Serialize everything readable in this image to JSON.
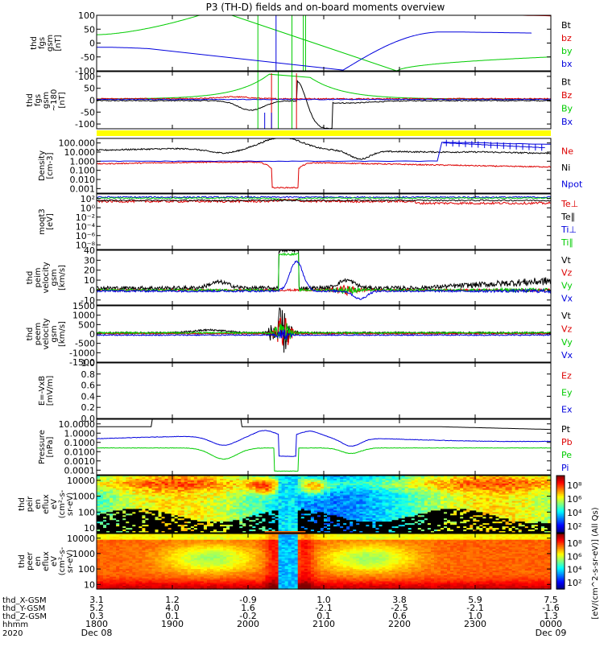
{
  "chart_data": {
    "type": "line",
    "title": "P3 (TH-D) fields and on-board moments overview",
    "time_axis": {
      "tick_labels": [
        "1800",
        "1900",
        "2000",
        "2100",
        "2200",
        "2300",
        "0000"
      ],
      "start_date": "Dec 08",
      "end_date": "Dec 09",
      "year": "2020",
      "row_labels": [
        "thd_X-GSM",
        "thd_Y-GSM",
        "thd_Z-GSM",
        "hhmm"
      ],
      "x_gsm": [
        "3.1",
        "1.2",
        "-0.9",
        "1.0",
        "3.8",
        "5.9",
        "7.5"
      ],
      "y_gsm": [
        "5.2",
        "4.0",
        "1.6",
        "-2.1",
        "-2.5",
        "-2.1",
        "-1.6"
      ],
      "z_gsm": [
        "0.3",
        "0.1",
        "-0.2",
        "0.1",
        "0.6",
        "1.0",
        "1.3"
      ]
    },
    "panels": [
      {
        "ylabel": [
          "thd",
          "fgs",
          "gsm",
          "[nT]"
        ],
        "ticks": [
          "100",
          "50",
          "0",
          "-50",
          "-100"
        ],
        "tick_values": [
          100,
          50,
          0,
          -50,
          -100
        ],
        "ylim": [
          -100,
          100
        ],
        "legend": [
          {
            "label": "Bt",
            "color": "#000000"
          },
          {
            "label": "bz",
            "color": "#dd0000"
          },
          {
            "label": "by",
            "color": "#00cc00"
          },
          {
            "label": "bx",
            "color": "#0000dd"
          }
        ]
      },
      {
        "ylabel": [
          "thd",
          "fgs",
          "gsm",
          "~180",
          "[nT]"
        ],
        "ticks": [
          "100",
          "50",
          "0",
          "-50",
          "-100"
        ],
        "tick_values": [
          100,
          50,
          0,
          -50,
          -100
        ],
        "ylim": [
          -120,
          120
        ],
        "legend": [
          {
            "label": "Bt",
            "color": "#000000"
          },
          {
            "label": "Bz",
            "color": "#dd0000"
          },
          {
            "label": "By",
            "color": "#00cc00"
          },
          {
            "label": "Bx",
            "color": "#0000dd"
          }
        ]
      },
      {
        "ylabel": [
          "Density",
          "[cm-3]"
        ],
        "ticks": [
          "100.000",
          "10.000",
          "1.000",
          "0.100",
          "0.010",
          "0.001"
        ],
        "tick_values": [
          2,
          1,
          0,
          -1,
          -2,
          -3
        ],
        "ylim": [
          -3.5,
          2.5
        ],
        "legend": [
          {
            "label": "Ne",
            "color": "#dd0000"
          },
          {
            "label": "Ni",
            "color": "#000000"
          },
          {
            "label": "Npot",
            "color": "#0000dd"
          }
        ]
      },
      {
        "ylabel": [
          "moqt3",
          "[eV]"
        ],
        "ticks": [
          "10²",
          "10⁰",
          "10⁻²",
          "10⁻⁴",
          "10⁻⁶",
          "10⁻⁸"
        ],
        "tick_values": [
          2,
          0,
          -2,
          -4,
          -6,
          -8
        ],
        "ylim": [
          -9,
          3
        ],
        "legend": [
          {
            "label": "Te⊥",
            "color": "#dd0000"
          },
          {
            "label": "Te∥",
            "color": "#000000"
          },
          {
            "label": "Ti⊥",
            "color": "#0000dd"
          },
          {
            "label": "Ti∥",
            "color": "#00cc00"
          }
        ]
      },
      {
        "ylabel": [
          "thd",
          "peim",
          "velocity",
          "gsm",
          "[km/s]"
        ],
        "ticks": [
          "40",
          "30",
          "20",
          "10",
          "0",
          "-10"
        ],
        "tick_values": [
          40,
          30,
          20,
          10,
          0,
          -10
        ],
        "ylim": [
          -15,
          40
        ],
        "legend": [
          {
            "label": "Vt",
            "color": "#000000"
          },
          {
            "label": "Vz",
            "color": "#dd0000"
          },
          {
            "label": "Vy",
            "color": "#00cc00"
          },
          {
            "label": "Vx",
            "color": "#0000dd"
          }
        ]
      },
      {
        "ylabel": [
          "thd",
          "peem",
          "velocity",
          "gsm",
          "[km/s]"
        ],
        "ticks": [
          "1500",
          "1000",
          "500",
          "0",
          "-500",
          "-1000",
          "-1500"
        ],
        "tick_values": [
          1500,
          1000,
          500,
          0,
          -500,
          -1000,
          -1500
        ],
        "ylim": [
          -1500,
          1500
        ],
        "legend": [
          {
            "label": "Vt",
            "color": "#000000"
          },
          {
            "label": "Vz",
            "color": "#dd0000"
          },
          {
            "label": "Vy",
            "color": "#00cc00"
          },
          {
            "label": "Vx",
            "color": "#0000dd"
          }
        ]
      },
      {
        "ylabel": [
          "E=-VxB",
          "[mV/m]"
        ],
        "ticks": [
          "1.0",
          "0.8",
          "0.6",
          "0.4",
          "0.2",
          "0.0"
        ],
        "tick_values": [
          1.0,
          0.8,
          0.6,
          0.4,
          0.2,
          0.0
        ],
        "ylim": [
          0,
          1
        ],
        "legend": [
          {
            "label": "Ez",
            "color": "#dd0000"
          },
          {
            "label": "Ey",
            "color": "#00cc00"
          },
          {
            "label": "Ex",
            "color": "#0000dd"
          }
        ]
      },
      {
        "ylabel": [
          "Pressure",
          "[nPa]"
        ],
        "ticks": [
          "10.0000",
          "1.0000",
          "0.1000",
          "0.0100",
          "0.0010",
          "0.0001"
        ],
        "tick_values": [
          1,
          0,
          -1,
          -2,
          -3,
          -4
        ],
        "ylim": [
          -4.5,
          1.5
        ],
        "legend": [
          {
            "label": "Pt",
            "color": "#000000"
          },
          {
            "label": "Pb",
            "color": "#dd0000"
          },
          {
            "label": "Pe",
            "color": "#00cc00"
          },
          {
            "label": "Pi",
            "color": "#0000dd"
          }
        ]
      },
      {
        "ylabel": [
          "thd",
          "peir",
          "en",
          "eflux",
          "eV",
          "(cm²-s-",
          "sr-eV)"
        ],
        "ticks": [
          "10000",
          "1000",
          "100",
          "10"
        ],
        "tick_values": [
          4,
          3,
          2,
          1
        ],
        "ylim": [
          0.7,
          4.3
        ],
        "legend": []
      },
      {
        "ylabel": [
          "thd",
          "peer",
          "en",
          "eflux",
          "eV",
          "(cm²-s-",
          "sr-eV)"
        ],
        "ticks": [
          "10000",
          "1000",
          "100",
          "10"
        ],
        "tick_values": [
          4,
          3,
          2,
          1
        ],
        "ylim": [
          0.7,
          4.3
        ],
        "legend": []
      }
    ],
    "colorbar": {
      "label": "[eV/(cm^2-s-sr-eV)] (All Qs)",
      "upper_ticks": [
        "10⁸",
        "10⁶",
        "10⁴",
        "10²"
      ],
      "lower_ticks": [
        "10⁸",
        "10⁶",
        "10⁴",
        "10²"
      ]
    }
  }
}
